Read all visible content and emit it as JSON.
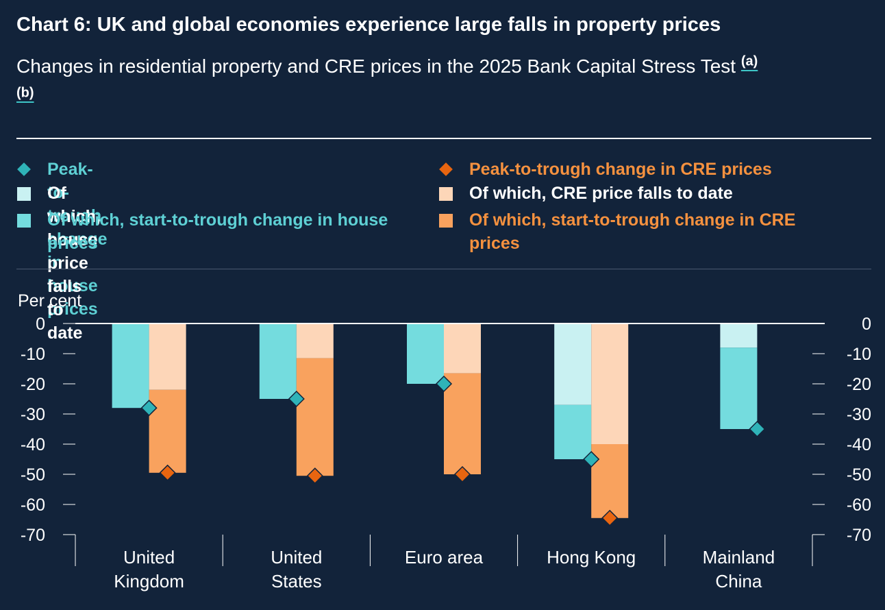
{
  "title": "Chart 6: UK and global economies experience large falls in property prices",
  "subtitle": "Changes in residential property and CRE prices in the 2025 Bank Capital Stress Test",
  "footnotes": [
    "(a)",
    "(b)"
  ],
  "legend": {
    "house_peak": "Peak-to-trough change in house prices",
    "house_to_date": "Of which, house price falls to date",
    "house_start": "Of which, start-to-trough change in house prices",
    "cre_peak": "Peak-to-trough change in CRE prices",
    "cre_to_date": "Of which, CRE price falls to date",
    "cre_start": "Of which, start-to-trough change in CRE prices"
  },
  "colors": {
    "background": "#12233a",
    "house_dark": "#74dcde",
    "house_light": "#c9f1f2",
    "house_marker": "#2fb3b8",
    "cre_dark": "#f9a25e",
    "cre_light": "#fdd6b8",
    "cre_marker": "#e86510",
    "house_legend_text": "#5ed0d4",
    "cre_legend_text": "#f5913f"
  },
  "chart_data": {
    "type": "bar",
    "ylabel": "Per cent",
    "ylim": [
      -70,
      0
    ],
    "yticks": [
      0,
      -10,
      -20,
      -30,
      -40,
      -50,
      -60,
      -70
    ],
    "categories": [
      [
        "United",
        "Kingdom"
      ],
      [
        "United",
        "States"
      ],
      [
        "Euro area"
      ],
      [
        "Hong Kong"
      ],
      [
        "Mainland",
        "China"
      ]
    ],
    "house": {
      "falls_to_date": [
        0,
        0,
        0,
        -27,
        -8
      ],
      "total": [
        -28,
        -25,
        -20,
        -45,
        -35
      ],
      "peak_to_trough": [
        -28,
        -25,
        -20,
        -45,
        -35
      ]
    },
    "cre": {
      "falls_to_date": [
        -22,
        -11.5,
        -16.5,
        -40,
        null
      ],
      "total": [
        -49.5,
        -50.5,
        -50,
        -64.5,
        null
      ],
      "peak_to_trough": [
        -49.5,
        -50.5,
        -50,
        -64.5,
        null
      ]
    }
  }
}
